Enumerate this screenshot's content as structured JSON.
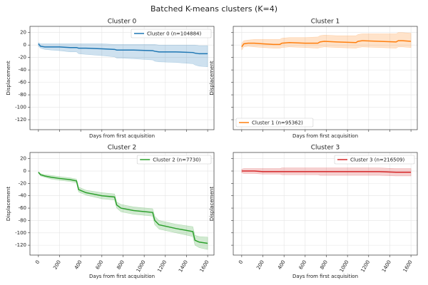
{
  "title": "Batched K-means clusters (K=4)",
  "chart_data": [
    {
      "type": "line",
      "title": "Cluster 0",
      "xlabel": "Days from first acquisition",
      "ylabel": "Displacement",
      "x": [
        0,
        20,
        60,
        120,
        200,
        300,
        360,
        380,
        450,
        600,
        720,
        740,
        780,
        900,
        1080,
        1100,
        1140,
        1300,
        1460,
        1480,
        1520,
        1600
      ],
      "series": [
        {
          "name": "Cluster 0 (n=104884)",
          "color": "#1f77b4",
          "values": [
            2,
            -2,
            -3,
            -3,
            -3,
            -4,
            -4,
            -5,
            -5,
            -6,
            -7,
            -8,
            -8,
            -8,
            -9,
            -10,
            -11,
            -11,
            -12,
            -13,
            -14,
            -14
          ],
          "lower": [
            -2,
            -5,
            -7,
            -8,
            -9,
            -11,
            -11,
            -14,
            -15,
            -17,
            -19,
            -21,
            -21,
            -22,
            -24,
            -26,
            -27,
            -28,
            -30,
            -32,
            -34,
            -35
          ],
          "upper": [
            4,
            2,
            2,
            2,
            2,
            2,
            2,
            2,
            2,
            2,
            1,
            1,
            1,
            1,
            1,
            1,
            0,
            0,
            0,
            0,
            -1,
            -1
          ]
        }
      ],
      "xlim": [
        -80,
        1660
      ],
      "ylim": [
        -136,
        30
      ],
      "xticks": [
        0,
        200,
        400,
        600,
        800,
        1000,
        1200,
        1400,
        1600
      ],
      "yticks": [
        20,
        0,
        -20,
        -40,
        -60,
        -80,
        -100,
        -120
      ],
      "grid": true,
      "legend": "upper right",
      "x_tick_labels": false,
      "y_tick_labels": true
    },
    {
      "type": "line",
      "title": "Cluster 1",
      "xlabel": "Days from first acquisition",
      "ylabel": "Displacement",
      "x": [
        0,
        20,
        60,
        120,
        200,
        300,
        360,
        380,
        450,
        600,
        720,
        740,
        780,
        900,
        1080,
        1100,
        1140,
        1300,
        1460,
        1480,
        1520,
        1600
      ],
      "series": [
        {
          "name": "Cluster 1 (n=95362)",
          "color": "#ff7f0e",
          "values": [
            -3,
            2,
            3,
            3,
            2,
            1,
            1,
            3,
            4,
            3,
            3,
            5,
            6,
            5,
            4,
            6,
            7,
            6,
            5,
            7,
            7,
            6
          ],
          "lower": [
            -8,
            -3,
            -2,
            -3,
            -4,
            -5,
            -5,
            -4,
            -3,
            -4,
            -5,
            -4,
            -3,
            -4,
            -5,
            -4,
            -3,
            -4,
            -5,
            -3,
            -3,
            -4
          ],
          "upper": [
            3,
            7,
            8,
            9,
            9,
            9,
            9,
            11,
            12,
            12,
            13,
            15,
            16,
            15,
            15,
            17,
            18,
            18,
            18,
            20,
            20,
            19
          ]
        }
      ],
      "xlim": [
        -80,
        1660
      ],
      "ylim": [
        -136,
        30
      ],
      "xticks": [
        0,
        200,
        400,
        600,
        800,
        1000,
        1200,
        1400,
        1600
      ],
      "yticks": [
        20,
        0,
        -20,
        -40,
        -60,
        -80,
        -100,
        -120
      ],
      "grid": true,
      "legend": "lower left",
      "x_tick_labels": false,
      "y_tick_labels": false
    },
    {
      "type": "line",
      "title": "Cluster 2",
      "xlabel": "Days from first acquisition",
      "ylabel": "Displacement",
      "x": [
        0,
        20,
        60,
        120,
        200,
        300,
        360,
        380,
        450,
        600,
        720,
        740,
        780,
        900,
        1080,
        1100,
        1140,
        1300,
        1460,
        1480,
        1520,
        1600
      ],
      "series": [
        {
          "name": "Cluster 2 (n=7730)",
          "color": "#2ca02c",
          "values": [
            -2,
            -6,
            -8,
            -10,
            -12,
            -14,
            -16,
            -30,
            -35,
            -40,
            -42,
            -55,
            -60,
            -64,
            -67,
            -80,
            -87,
            -93,
            -98,
            -112,
            -115,
            -117
          ],
          "lower": [
            -3,
            -8,
            -10,
            -13,
            -15,
            -17,
            -19,
            -34,
            -39,
            -45,
            -47,
            -60,
            -66,
            -70,
            -73,
            -87,
            -94,
            -100,
            -106,
            -120,
            -124,
            -127
          ],
          "upper": [
            -1,
            -4,
            -6,
            -7,
            -9,
            -11,
            -13,
            -26,
            -31,
            -35,
            -37,
            -50,
            -54,
            -58,
            -61,
            -73,
            -80,
            -86,
            -90,
            -104,
            -106,
            -107
          ]
        }
      ],
      "xlim": [
        -80,
        1660
      ],
      "ylim": [
        -136,
        30
      ],
      "xticks": [
        0,
        200,
        400,
        600,
        800,
        1000,
        1200,
        1400,
        1600
      ],
      "yticks": [
        20,
        0,
        -20,
        -40,
        -60,
        -80,
        -100,
        -120
      ],
      "grid": true,
      "legend": "upper right",
      "x_tick_labels": true,
      "y_tick_labels": true
    },
    {
      "type": "line",
      "title": "Cluster 3",
      "xlabel": "Days from first acquisition",
      "ylabel": "Displacement",
      "x": [
        0,
        20,
        60,
        120,
        200,
        300,
        360,
        380,
        450,
        600,
        720,
        740,
        780,
        900,
        1080,
        1100,
        1140,
        1300,
        1460,
        1480,
        1520,
        1600
      ],
      "series": [
        {
          "name": "Cluster 3 (n=216509)",
          "color": "#d62728",
          "values": [
            0,
            0,
            0,
            0,
            -1,
            -1,
            -1,
            -1,
            -1,
            -1,
            -1,
            -1,
            -1,
            -1,
            -1,
            -1,
            -1,
            -1,
            -2,
            -2,
            -2,
            -2
          ],
          "lower": [
            -3,
            -4,
            -4,
            -4,
            -5,
            -5,
            -5,
            -6,
            -6,
            -6,
            -6,
            -7,
            -7,
            -7,
            -7,
            -7,
            -7,
            -7,
            -8,
            -8,
            -8,
            -8
          ],
          "upper": [
            3,
            4,
            4,
            4,
            4,
            4,
            4,
            5,
            5,
            5,
            5,
            5,
            5,
            5,
            5,
            5,
            5,
            5,
            4,
            4,
            4,
            4
          ]
        }
      ],
      "xlim": [
        -80,
        1660
      ],
      "ylim": [
        -136,
        30
      ],
      "xticks": [
        0,
        200,
        400,
        600,
        800,
        1000,
        1200,
        1400,
        1600
      ],
      "yticks": [
        20,
        0,
        -20,
        -40,
        -60,
        -80,
        -100,
        -120
      ],
      "grid": true,
      "legend": "upper right",
      "x_tick_labels": true,
      "y_tick_labels": false
    }
  ]
}
